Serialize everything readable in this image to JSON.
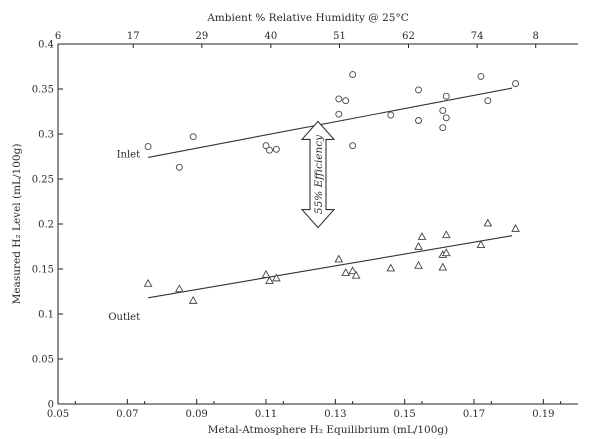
{
  "chart_data": {
    "type": "scatter",
    "title": "",
    "xlabel": "Metal-Atmosphere H₂ Equilibrium (mL/100g)",
    "ylabel": "Measured H₂ Level (mL/100g)",
    "secondary_xlabel": "Ambient % Relative Humidity @ 25°C",
    "xlim": [
      0.05,
      0.2
    ],
    "ylim": [
      0,
      0.4
    ],
    "x_ticks": [
      "0.05",
      "0.07",
      "0.09",
      "0.11",
      "0.13",
      "0.15",
      "0.17",
      "0.19"
    ],
    "y_ticks": [
      "0",
      "0.05",
      "0.1",
      "0.15",
      "0.2",
      "0.25",
      "0.3",
      "0.35",
      "0.4"
    ],
    "secondary_x_ticks": [
      {
        "x": 0.05,
        "label": "6"
      },
      {
        "x": 0.0717,
        "label": "17"
      },
      {
        "x": 0.0915,
        "label": "29"
      },
      {
        "x": 0.1114,
        "label": "40"
      },
      {
        "x": 0.1312,
        "label": "51"
      },
      {
        "x": 0.1511,
        "label": "62"
      },
      {
        "x": 0.1709,
        "label": "74"
      },
      {
        "x": 0.1878,
        "label": "8"
      }
    ],
    "grid": false,
    "series": [
      {
        "name": "Inlet",
        "marker": "circle",
        "points": [
          [
            0.076,
            0.286
          ],
          [
            0.085,
            0.263
          ],
          [
            0.089,
            0.297
          ],
          [
            0.11,
            0.287
          ],
          [
            0.111,
            0.282
          ],
          [
            0.113,
            0.283
          ],
          [
            0.131,
            0.339
          ],
          [
            0.131,
            0.322
          ],
          [
            0.133,
            0.337
          ],
          [
            0.135,
            0.287
          ],
          [
            0.135,
            0.366
          ],
          [
            0.146,
            0.321
          ],
          [
            0.154,
            0.349
          ],
          [
            0.154,
            0.315
          ],
          [
            0.161,
            0.326
          ],
          [
            0.161,
            0.307
          ],
          [
            0.162,
            0.318
          ],
          [
            0.162,
            0.342
          ],
          [
            0.172,
            0.364
          ],
          [
            0.174,
            0.337
          ],
          [
            0.182,
            0.356
          ]
        ],
        "trend": {
          "x": [
            0.076,
            0.181
          ],
          "y": [
            0.274,
            0.351
          ]
        }
      },
      {
        "name": "Outlet",
        "marker": "triangle",
        "points": [
          [
            0.076,
            0.134
          ],
          [
            0.085,
            0.128
          ],
          [
            0.089,
            0.115
          ],
          [
            0.11,
            0.144
          ],
          [
            0.111,
            0.137
          ],
          [
            0.113,
            0.14
          ],
          [
            0.131,
            0.161
          ],
          [
            0.133,
            0.146
          ],
          [
            0.135,
            0.148
          ],
          [
            0.136,
            0.143
          ],
          [
            0.146,
            0.151
          ],
          [
            0.154,
            0.175
          ],
          [
            0.155,
            0.186
          ],
          [
            0.154,
            0.154
          ],
          [
            0.161,
            0.166
          ],
          [
            0.161,
            0.152
          ],
          [
            0.162,
            0.168
          ],
          [
            0.162,
            0.188
          ],
          [
            0.172,
            0.177
          ],
          [
            0.174,
            0.201
          ],
          [
            0.182,
            0.195
          ]
        ],
        "trend": {
          "x": [
            0.076,
            0.181
          ],
          "y": [
            0.118,
            0.187
          ]
        }
      }
    ],
    "annotations": [
      {
        "text": "55% Efficiency",
        "x": 0.125,
        "y_from": 0.196,
        "y_to": 0.314
      }
    ],
    "legend": "none"
  }
}
